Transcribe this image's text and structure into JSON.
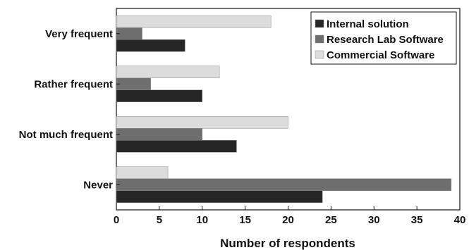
{
  "chart_data": {
    "type": "bar",
    "orientation": "horizontal",
    "categories": [
      "Very frequent",
      "Rather frequent",
      "Not much frequent",
      "Never"
    ],
    "series": [
      {
        "name": "Internal solution",
        "values": [
          8,
          10,
          14,
          24
        ],
        "color": "#262626"
      },
      {
        "name": "Research Lab Software",
        "values": [
          3,
          4,
          10,
          39
        ],
        "color": "#6e6e6e"
      },
      {
        "name": "Commercial Software",
        "values": [
          18,
          12,
          20,
          6
        ],
        "color": "#dcdcdc"
      }
    ],
    "xlabel": "Number of respondents",
    "ylabel": "",
    "title": "",
    "xlim": [
      0,
      40
    ],
    "xticks": [
      "0",
      "5",
      "10",
      "15",
      "20",
      "25",
      "30",
      "35",
      "40"
    ],
    "grid": false,
    "legend_position": "top-right"
  }
}
